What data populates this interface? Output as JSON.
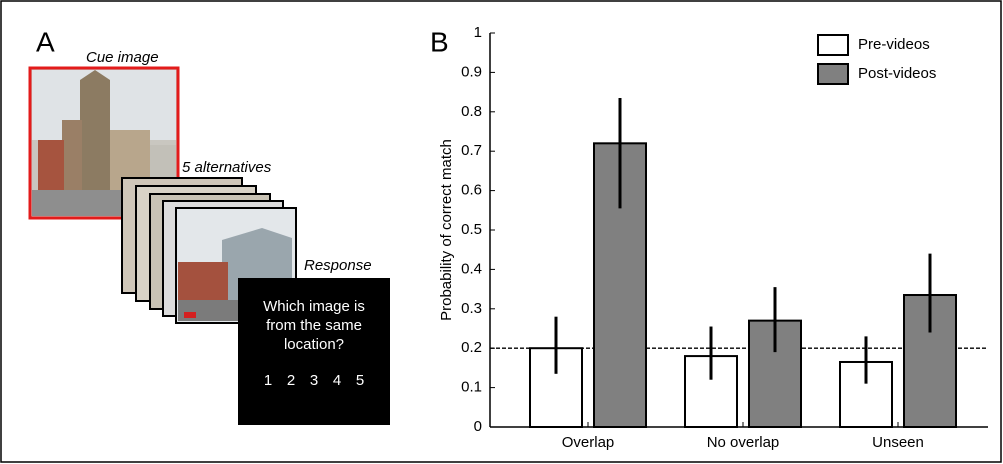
{
  "panel_a": {
    "label": "A",
    "cue_label": "Cue image",
    "alternatives_label": "5 alternatives",
    "response_label": "Response",
    "question_lines": [
      "Which image is",
      "from the same",
      "location?"
    ],
    "options": [
      "1",
      "2",
      "3",
      "4",
      "5"
    ]
  },
  "chart_data": {
    "type": "bar",
    "panel_label": "B",
    "y_label": "Probability of correct match",
    "categories": [
      "Overlap",
      "No overlap",
      "Unseen"
    ],
    "series": [
      {
        "name": "Pre-videos",
        "color": "#ffffff",
        "values": [
          0.2,
          0.18,
          0.165
        ],
        "error_low": [
          0.135,
          0.12,
          0.11
        ],
        "error_high": [
          0.28,
          0.255,
          0.23
        ]
      },
      {
        "name": "Post-videos",
        "color": "#808080",
        "values": [
          0.72,
          0.27,
          0.335
        ],
        "error_low": [
          0.555,
          0.19,
          0.24
        ],
        "error_high": [
          0.835,
          0.355,
          0.44
        ]
      }
    ],
    "ylim": [
      0,
      1
    ],
    "yticks": [
      0,
      0.1,
      0.2,
      0.3,
      0.4,
      0.5,
      0.6,
      0.7,
      0.8,
      0.9,
      1
    ],
    "reference_line": 0.2,
    "legend": "top-right"
  }
}
